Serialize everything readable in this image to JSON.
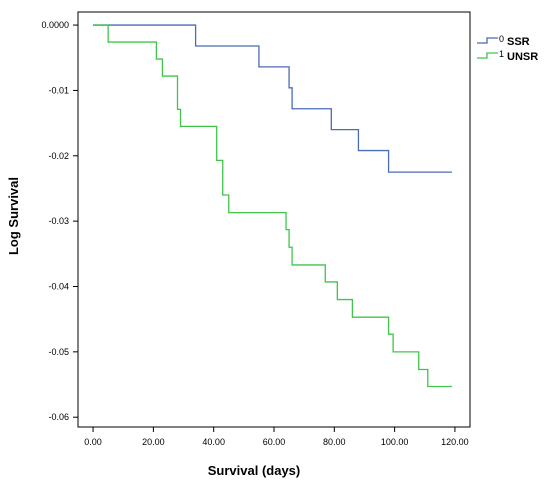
{
  "chart_data": {
    "type": "line",
    "step": true,
    "xlabel": "Survival (days)",
    "ylabel": "Log Survival",
    "xlim": [
      -5,
      125
    ],
    "ylim": [
      -0.0615,
      0.002
    ],
    "xticks": [
      0,
      20,
      40,
      60,
      80,
      100,
      120
    ],
    "xtick_labels": [
      "0.00",
      "20.00",
      "40.00",
      "60.00",
      "80.00",
      "100.00",
      "120.00"
    ],
    "yticks": [
      0,
      -0.01,
      -0.02,
      -0.03,
      -0.04,
      -0.05,
      -0.06
    ],
    "ytick_labels": [
      "0.0000",
      "-0.01",
      "-0.02",
      "-0.03",
      "-0.04",
      "-0.05",
      "-0.06"
    ],
    "grid": false,
    "legend_position": "top-right",
    "series": [
      {
        "name": "SSR",
        "code": "0",
        "color": "#4a6bb5",
        "x": [
          0,
          34,
          55,
          65,
          66,
          67,
          79,
          88,
          98,
          119
        ],
        "y": [
          0,
          -0.0032,
          -0.0064,
          -0.0096,
          -0.0128,
          -0.0128,
          -0.016,
          -0.0192,
          -0.0225,
          -0.0225
        ]
      },
      {
        "name": "UNSR",
        "code": "1",
        "color": "#3ec54a",
        "x": [
          0,
          5,
          21,
          23,
          25,
          28,
          29,
          41,
          42,
          43,
          45,
          64,
          65,
          66,
          67,
          77,
          81,
          86,
          98,
          99,
          99.5,
          108,
          111,
          119
        ],
        "y": [
          0,
          -0.0026,
          -0.0052,
          -0.0078,
          -0.0078,
          -0.0129,
          -0.0155,
          -0.0207,
          -0.0207,
          -0.026,
          -0.0287,
          -0.0313,
          -0.034,
          -0.0367,
          -0.0367,
          -0.0393,
          -0.042,
          -0.0447,
          -0.0473,
          -0.0473,
          -0.05,
          -0.0527,
          -0.0553,
          -0.0553
        ]
      }
    ]
  }
}
